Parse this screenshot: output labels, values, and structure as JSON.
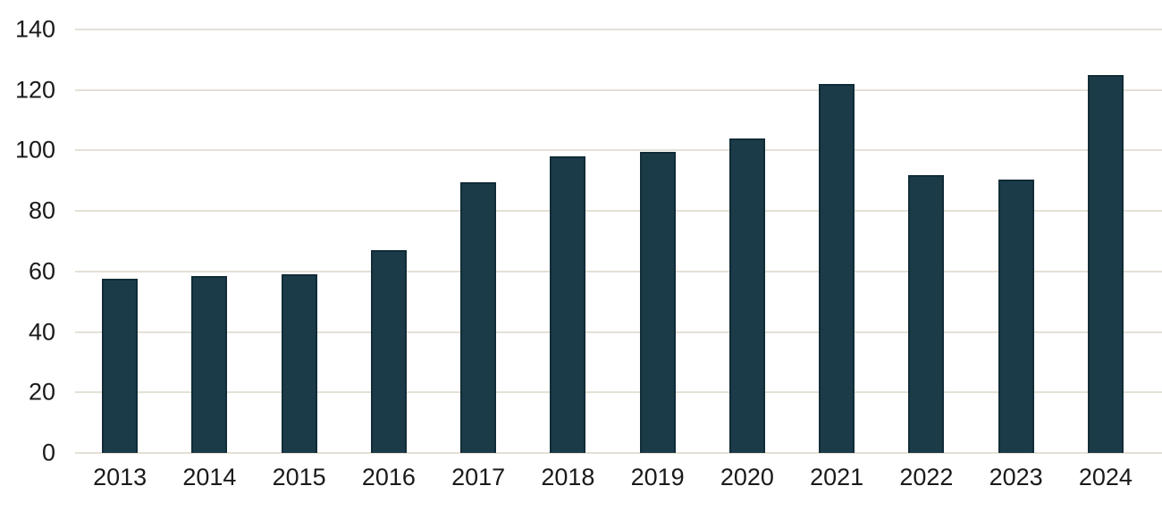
{
  "chart_data": {
    "type": "bar",
    "title": "",
    "xlabel": "",
    "ylabel": "",
    "categories": [
      "2013",
      "2014",
      "2015",
      "2016",
      "2017",
      "2018",
      "2019",
      "2020",
      "2021",
      "2022",
      "2023",
      "2024"
    ],
    "values": [
      57.5,
      58.5,
      59,
      67,
      89.5,
      98,
      99.5,
      104,
      122,
      92,
      90.5,
      125
    ],
    "ylim": [
      0,
      140
    ],
    "yticks": [
      0,
      20,
      40,
      60,
      80,
      100,
      120,
      140
    ],
    "grid": true,
    "legend": false,
    "colors": {
      "bar_fill": "#1b3b48",
      "bar_border": "#112c38",
      "gridline": "#e4e0d6",
      "tick_text": "#1a1a1a",
      "background": "#ffffff"
    }
  }
}
